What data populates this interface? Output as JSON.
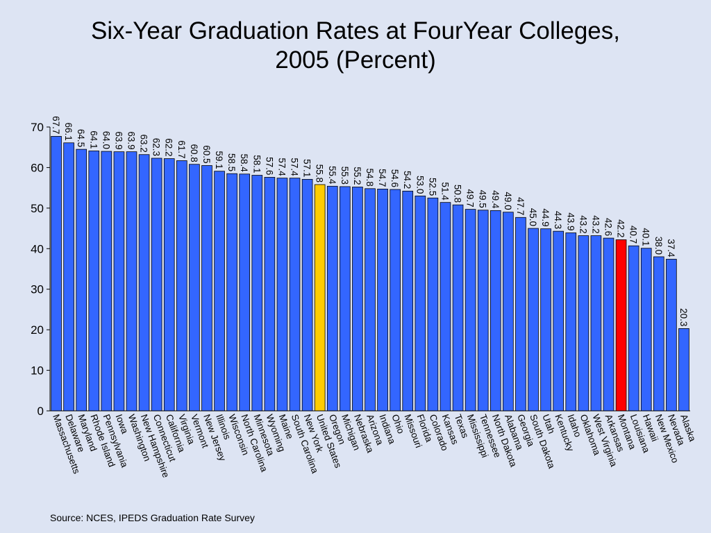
{
  "title_lines": [
    "Six-Year Graduation Rates at FourYear Colleges,",
    "2005 (Percent)"
  ],
  "source": "Source:  NCES, IPEDS Graduation Rate Survey",
  "colors": {
    "background": "#dde4f3",
    "bar": "#3366ff",
    "highlight_us": "#ffcc00",
    "highlight_montana": "#ff0000"
  },
  "chart_data": {
    "type": "bar",
    "title": "Six-Year Graduation Rates at FourYear Colleges, 2005 (Percent)",
    "ylim": [
      0,
      70
    ],
    "yticks": [
      0,
      10,
      20,
      30,
      40,
      50,
      60,
      70
    ],
    "grid": false,
    "categories": [
      "Massachusetts",
      "Delaware",
      "Maryland",
      "Rhode Island",
      "Pennsylvania",
      "Iowa",
      "Washington",
      "New Hampshire",
      "Connecticut",
      "California",
      "Virginia",
      "Vermont",
      "New Jersey",
      "Illinois",
      "Wisconsin",
      "North Carolina",
      "Minnesota",
      "Wyoming",
      "Maine",
      "South Carolina",
      "New York",
      "United States",
      "Oregon",
      "Michigan",
      "Nebraska",
      "Arizona",
      "Indiana",
      "Ohio",
      "Missouri",
      "Florida",
      "Colorado",
      "Kansas",
      "Texas",
      "Mississippi",
      "Tennessee",
      "North Dakota",
      "Alabama",
      "Georgia",
      "South Dakota",
      "Utah",
      "Kentucky",
      "Idaho",
      "Oklahoma",
      "West Virginia",
      "Arkansas",
      "Montana",
      "Louisiana",
      "Hawaii",
      "New Mexico",
      "Nevada",
      "Alaska"
    ],
    "values": [
      67.7,
      66.1,
      64.5,
      64.1,
      64.0,
      63.9,
      63.9,
      63.2,
      62.3,
      62.2,
      61.7,
      60.8,
      60.5,
      59.1,
      58.5,
      58.4,
      58.1,
      57.6,
      57.4,
      57.4,
      57.1,
      55.8,
      55.4,
      55.3,
      55.2,
      54.8,
      54.7,
      54.6,
      54.2,
      53.0,
      52.5,
      51.4,
      50.8,
      49.7,
      49.5,
      49.4,
      49.0,
      47.7,
      45.0,
      44.9,
      44.3,
      43.9,
      43.2,
      43.2,
      42.6,
      42.2,
      40.7,
      40.1,
      38.0,
      37.4,
      20.3
    ],
    "labels": [
      "67.7",
      "66.1",
      "64.5",
      "64.1",
      "64.0",
      "63.9",
      "63.9",
      "63.2",
      "62.3",
      "62.2",
      "61.7",
      "60.8",
      "60.5",
      "59.1",
      "58.5",
      "58.4",
      "58.1",
      "57.6",
      "57.4",
      "57.4",
      "57.1",
      "55.8",
      "55.4",
      "55.3",
      "55.2",
      "54.8",
      "54.7",
      "54.6",
      "54.2",
      "53.0",
      "52.5",
      "51.4",
      "50.8",
      "49.7",
      "49.5",
      "49.4",
      "49.0",
      "47.7",
      "45.0",
      "44.9",
      "44.3",
      "43.9",
      "43.2",
      "43.2",
      "42.6",
      "42.2",
      "40.7",
      "40.1",
      "38.0",
      "37.4",
      "20.3"
    ],
    "highlights": {
      "United States": "#ffcc00",
      "Montana": "#ff0000"
    }
  }
}
